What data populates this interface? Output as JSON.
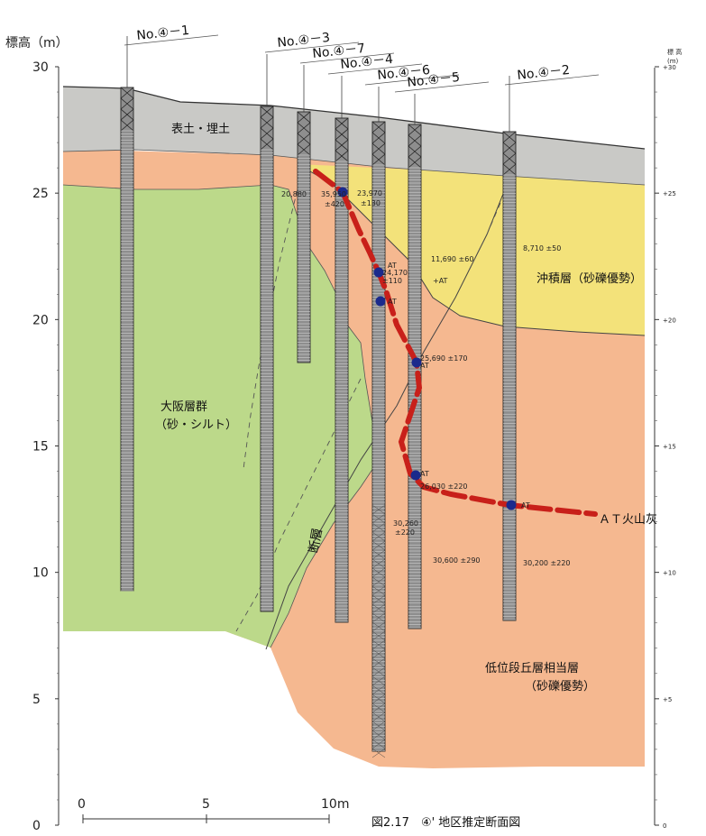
{
  "figure": {
    "caption": "図2.17　④' 地区推定断面図"
  },
  "left_axis": {
    "title": "標高（m）",
    "ticks": [
      "30",
      "25",
      "20",
      "15",
      "10",
      "5",
      "0"
    ]
  },
  "right_axis": {
    "title_top": "標 高",
    "title_unit": "(m)",
    "ticks": [
      "+30",
      "+25",
      "+20",
      "+15",
      "+10",
      "+5",
      "0"
    ]
  },
  "scale_bar": {
    "labels": [
      "0",
      "5",
      "10m"
    ]
  },
  "boreholes": [
    {
      "name": "No.④－1"
    },
    {
      "name": "No.④－3"
    },
    {
      "name": "No.④－7"
    },
    {
      "name": "No.④－4"
    },
    {
      "name": "No.④－6"
    },
    {
      "name": "No.④－5"
    },
    {
      "name": "No.④－2"
    }
  ],
  "layers": {
    "fill": "表土・埋土",
    "alluvium": "沖積層（砂礫優勢）",
    "osaka_1": "大阪層群",
    "osaka_2": "（砂・シルト）",
    "lower_terrace_1": "低位段丘層相当層",
    "lower_terrace_2": "（砂礫優勢）",
    "fault": "断層",
    "ash": "ＡＴ火山灰"
  },
  "annotations": [
    {
      "text": "20,880"
    },
    {
      "text": "35,950"
    },
    {
      "text": "±420"
    },
    {
      "text": "23,970"
    },
    {
      "text": "±130"
    },
    {
      "text": "AT"
    },
    {
      "text": "24,170"
    },
    {
      "text": "±110"
    },
    {
      "text": "11,690 ±60"
    },
    {
      "text": "+AT"
    },
    {
      "text": "AT"
    },
    {
      "text": "25,690 ±170"
    },
    {
      "text": "AT"
    },
    {
      "text": "AT"
    },
    {
      "text": "26,030 ±220"
    },
    {
      "text": "AT"
    },
    {
      "text": "30,260"
    },
    {
      "text": "±220"
    },
    {
      "text": "30,600 ±290"
    },
    {
      "text": "8,710 ±50"
    },
    {
      "text": "30,200 ±220"
    }
  ],
  "colors": {
    "fill_layer": "#c9c9c6",
    "alluvium": "#f3e27a",
    "osaka": "#bcd98a",
    "terrace": "#f4b48a",
    "ash_line": "#c8201a",
    "ash_dot": "#1b2a8c"
  }
}
